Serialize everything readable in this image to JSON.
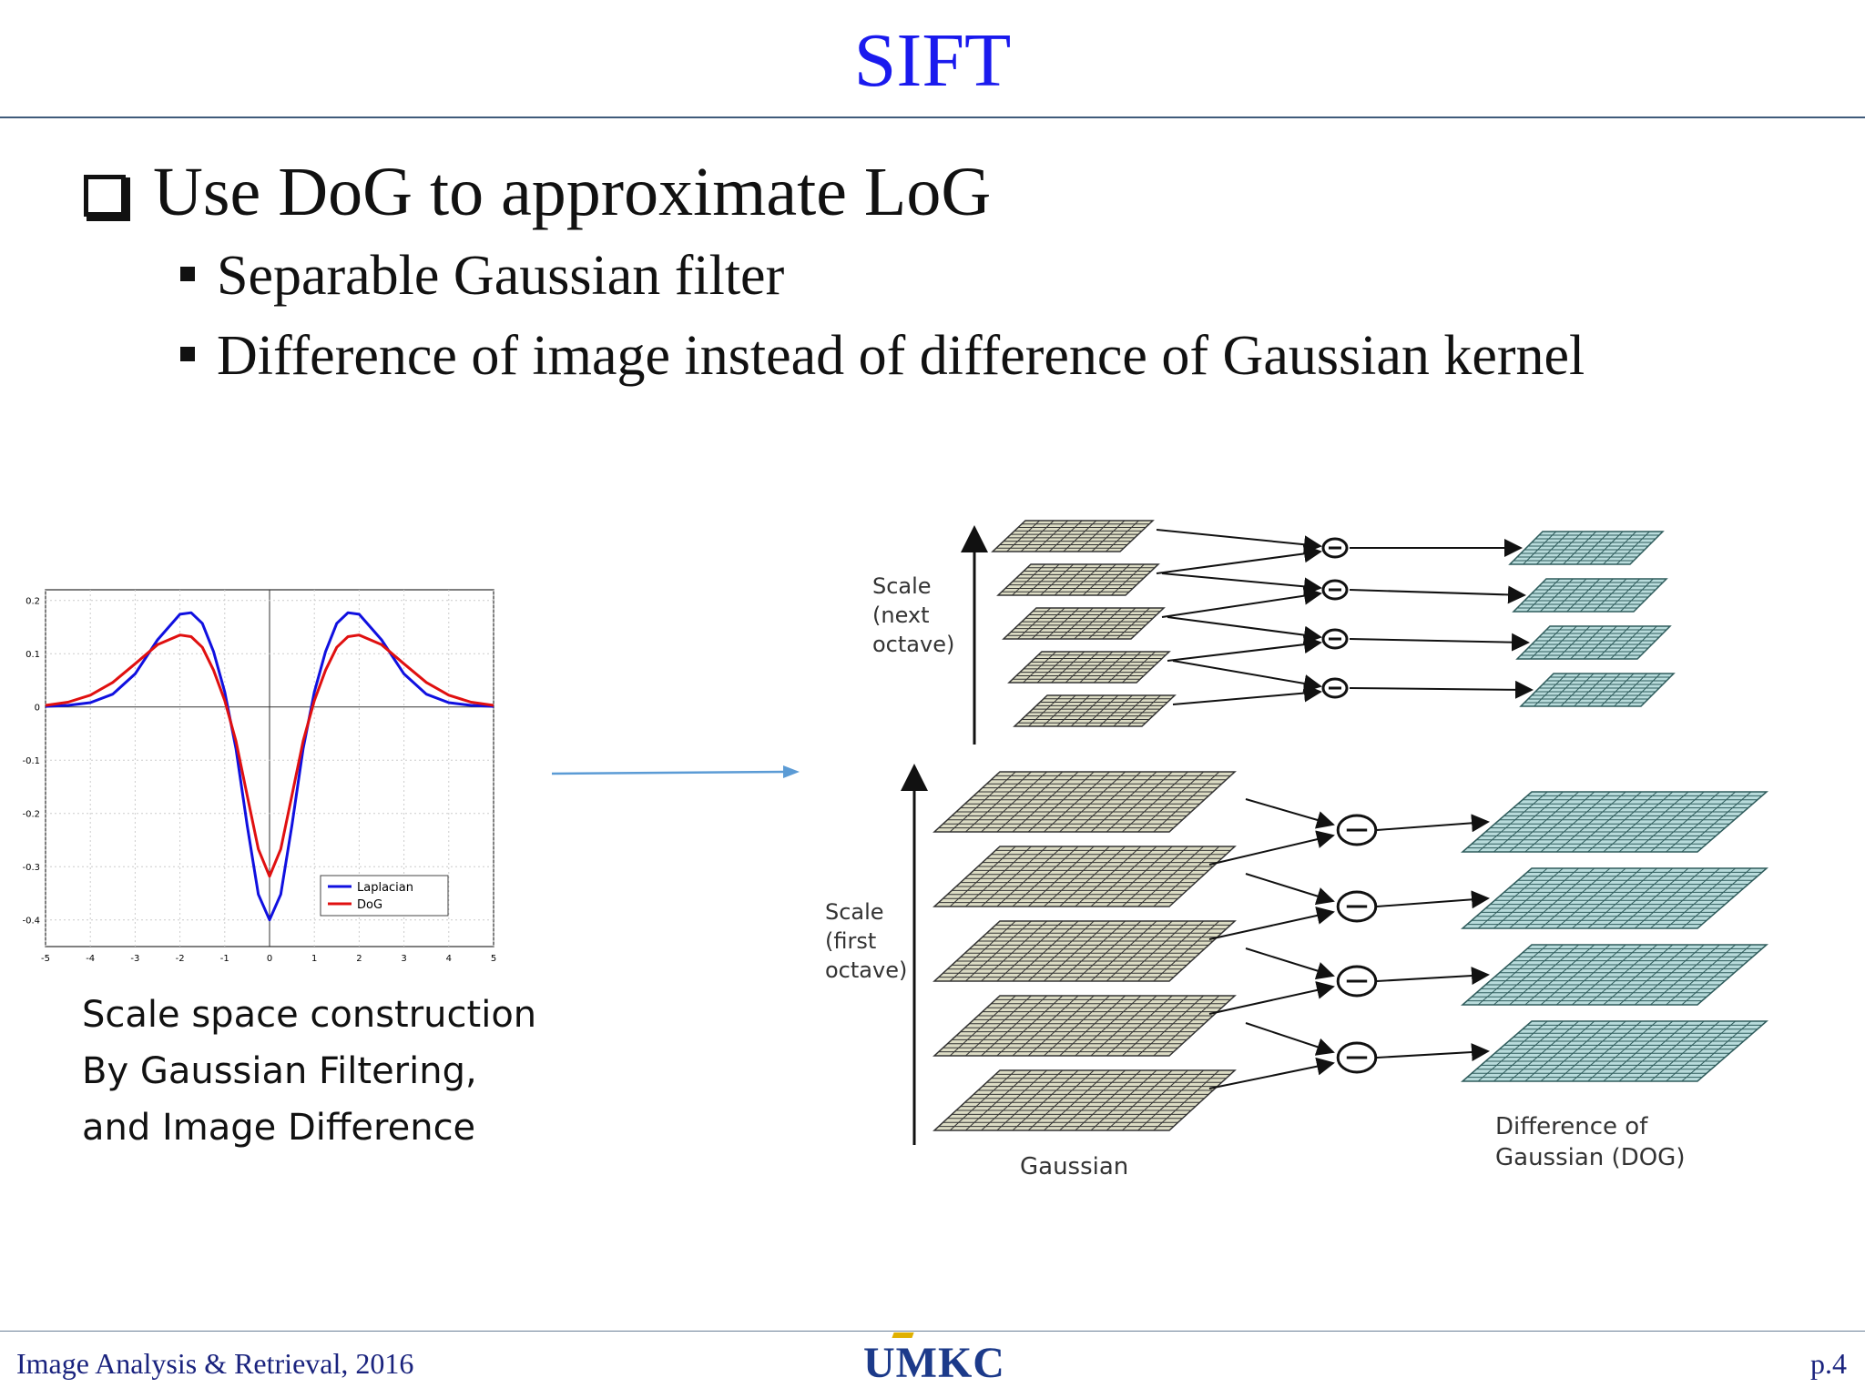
{
  "slide": {
    "title": "SIFT",
    "bullet_main": "Use DoG to approximate LoG",
    "sub_bullets": [
      "Separable Gaussian filter",
      "Difference of image instead of difference of Gaussian kernel"
    ],
    "caption_lines": [
      "Scale space construction",
      "By Gaussian Filtering,",
      "and Image Difference"
    ],
    "footer_left": "Image Analysis & Retrieval, 2016",
    "footer_right": "p.4",
    "logo_text": "UMKC"
  },
  "diagram": {
    "scale_next_label": [
      "Scale",
      "(next",
      "octave)"
    ],
    "scale_first_label": [
      "Scale",
      "(first",
      "octave)"
    ],
    "gaussian_label": "Gaussian",
    "dog_label": [
      "Difference of",
      "Gaussian (DOG)"
    ],
    "minus_symbol": "−"
  },
  "chart_data": {
    "type": "line",
    "xlim": [
      -5,
      5
    ],
    "ylim": [
      -0.45,
      0.22
    ],
    "xticks": [
      "-5",
      "-4",
      "-3",
      "-2",
      "-1",
      "0",
      "1",
      "2",
      "3",
      "4",
      "5"
    ],
    "yticks": [
      "0.2",
      "0.1",
      "0",
      "-0.1",
      "-0.2",
      "-0.3",
      "-0.4"
    ],
    "ytick_values": [
      0.2,
      0.1,
      0,
      -0.1,
      -0.2,
      -0.3,
      -0.4
    ],
    "grid": true,
    "legend_position": "bottom-right",
    "series": [
      {
        "name": "Laplacian",
        "color": "#1010e0",
        "x": [
          -5,
          -4.5,
          -4,
          -3.5,
          -3,
          -2.5,
          -2,
          -1.75,
          -1.5,
          -1.25,
          -1,
          -0.75,
          -0.5,
          -0.25,
          0,
          0.25,
          0.5,
          0.75,
          1,
          1.25,
          1.5,
          1.75,
          2,
          2.5,
          3,
          3.5,
          4,
          4.5,
          5
        ],
        "y": [
          0.001,
          0.003,
          0.008,
          0.024,
          0.062,
          0.126,
          0.174,
          0.177,
          0.157,
          0.104,
          0.028,
          -0.078,
          -0.222,
          -0.352,
          -0.4,
          -0.352,
          -0.222,
          -0.078,
          0.028,
          0.104,
          0.157,
          0.177,
          0.174,
          0.126,
          0.062,
          0.024,
          0.008,
          0.003,
          0.001
        ]
      },
      {
        "name": "DoG",
        "color": "#e01010",
        "x": [
          -5,
          -4.5,
          -4,
          -3.5,
          -3,
          -2.5,
          -2,
          -1.75,
          -1.5,
          -1.25,
          -1,
          -0.75,
          -0.5,
          -0.25,
          0,
          0.25,
          0.5,
          0.75,
          1,
          1.25,
          1.5,
          1.75,
          2,
          2.5,
          3,
          3.5,
          4,
          4.5,
          5
        ],
        "y": [
          0.003,
          0.009,
          0.022,
          0.046,
          0.081,
          0.117,
          0.135,
          0.132,
          0.112,
          0.069,
          0.012,
          -0.064,
          -0.166,
          -0.267,
          -0.318,
          -0.267,
          -0.166,
          -0.064,
          0.012,
          0.069,
          0.112,
          0.132,
          0.135,
          0.117,
          0.081,
          0.046,
          0.022,
          0.009,
          0.003
        ]
      }
    ]
  }
}
